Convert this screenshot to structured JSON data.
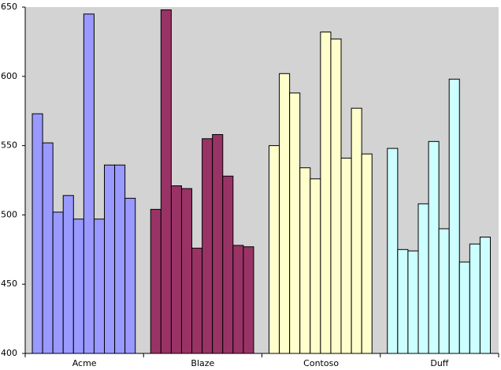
{
  "chart_data": {
    "type": "bar",
    "categories": [
      "Acme",
      "Blaze",
      "Contoso",
      "Duff"
    ],
    "values": [
      [
        573,
        552,
        502,
        514,
        497,
        645,
        497,
        536,
        536,
        512
      ],
      [
        504,
        648,
        521,
        519,
        476,
        555,
        558,
        528,
        478,
        477
      ],
      [
        550,
        602,
        588,
        534,
        526,
        632,
        627,
        541,
        577,
        544
      ],
      [
        548,
        475,
        474,
        508,
        553,
        490,
        598,
        466,
        479,
        484
      ]
    ],
    "colors": [
      "#9999ff",
      "#993366",
      "#ffffcc",
      "#ccffff"
    ],
    "ylim": [
      400,
      650
    ],
    "yticks": [
      400,
      450,
      500,
      550,
      600,
      650
    ]
  }
}
